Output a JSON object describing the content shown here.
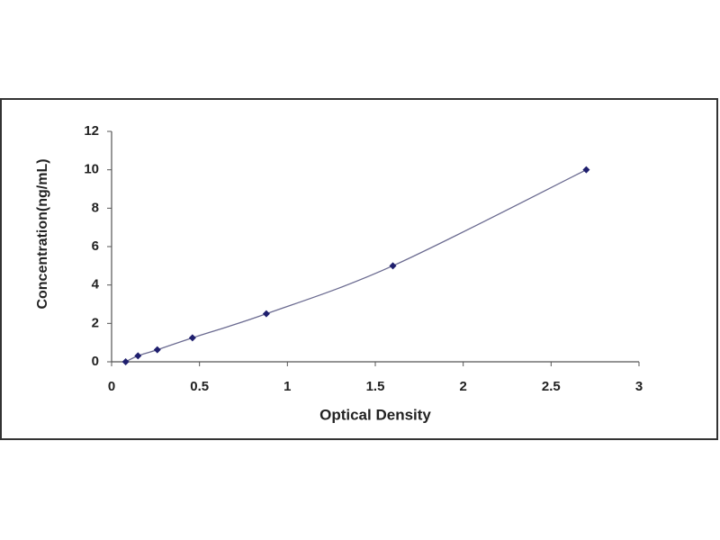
{
  "chart_data": {
    "type": "scatter",
    "xlabel": "Optical Density",
    "ylabel": "Concentration(ng/mL)",
    "x": [
      0.08,
      0.15,
      0.26,
      0.46,
      0.88,
      1.6,
      2.7
    ],
    "values": [
      0,
      0.312,
      0.625,
      1.25,
      2.5,
      5,
      10
    ],
    "color": "#1f1f6e",
    "line_color": "#6a6a90",
    "xlim": [
      0,
      3
    ],
    "ylim": [
      0,
      12
    ],
    "xticks": [
      0,
      0.5,
      1,
      1.5,
      2,
      2.5,
      3
    ],
    "yticks": [
      0,
      2,
      4,
      6,
      8,
      10,
      12
    ]
  }
}
